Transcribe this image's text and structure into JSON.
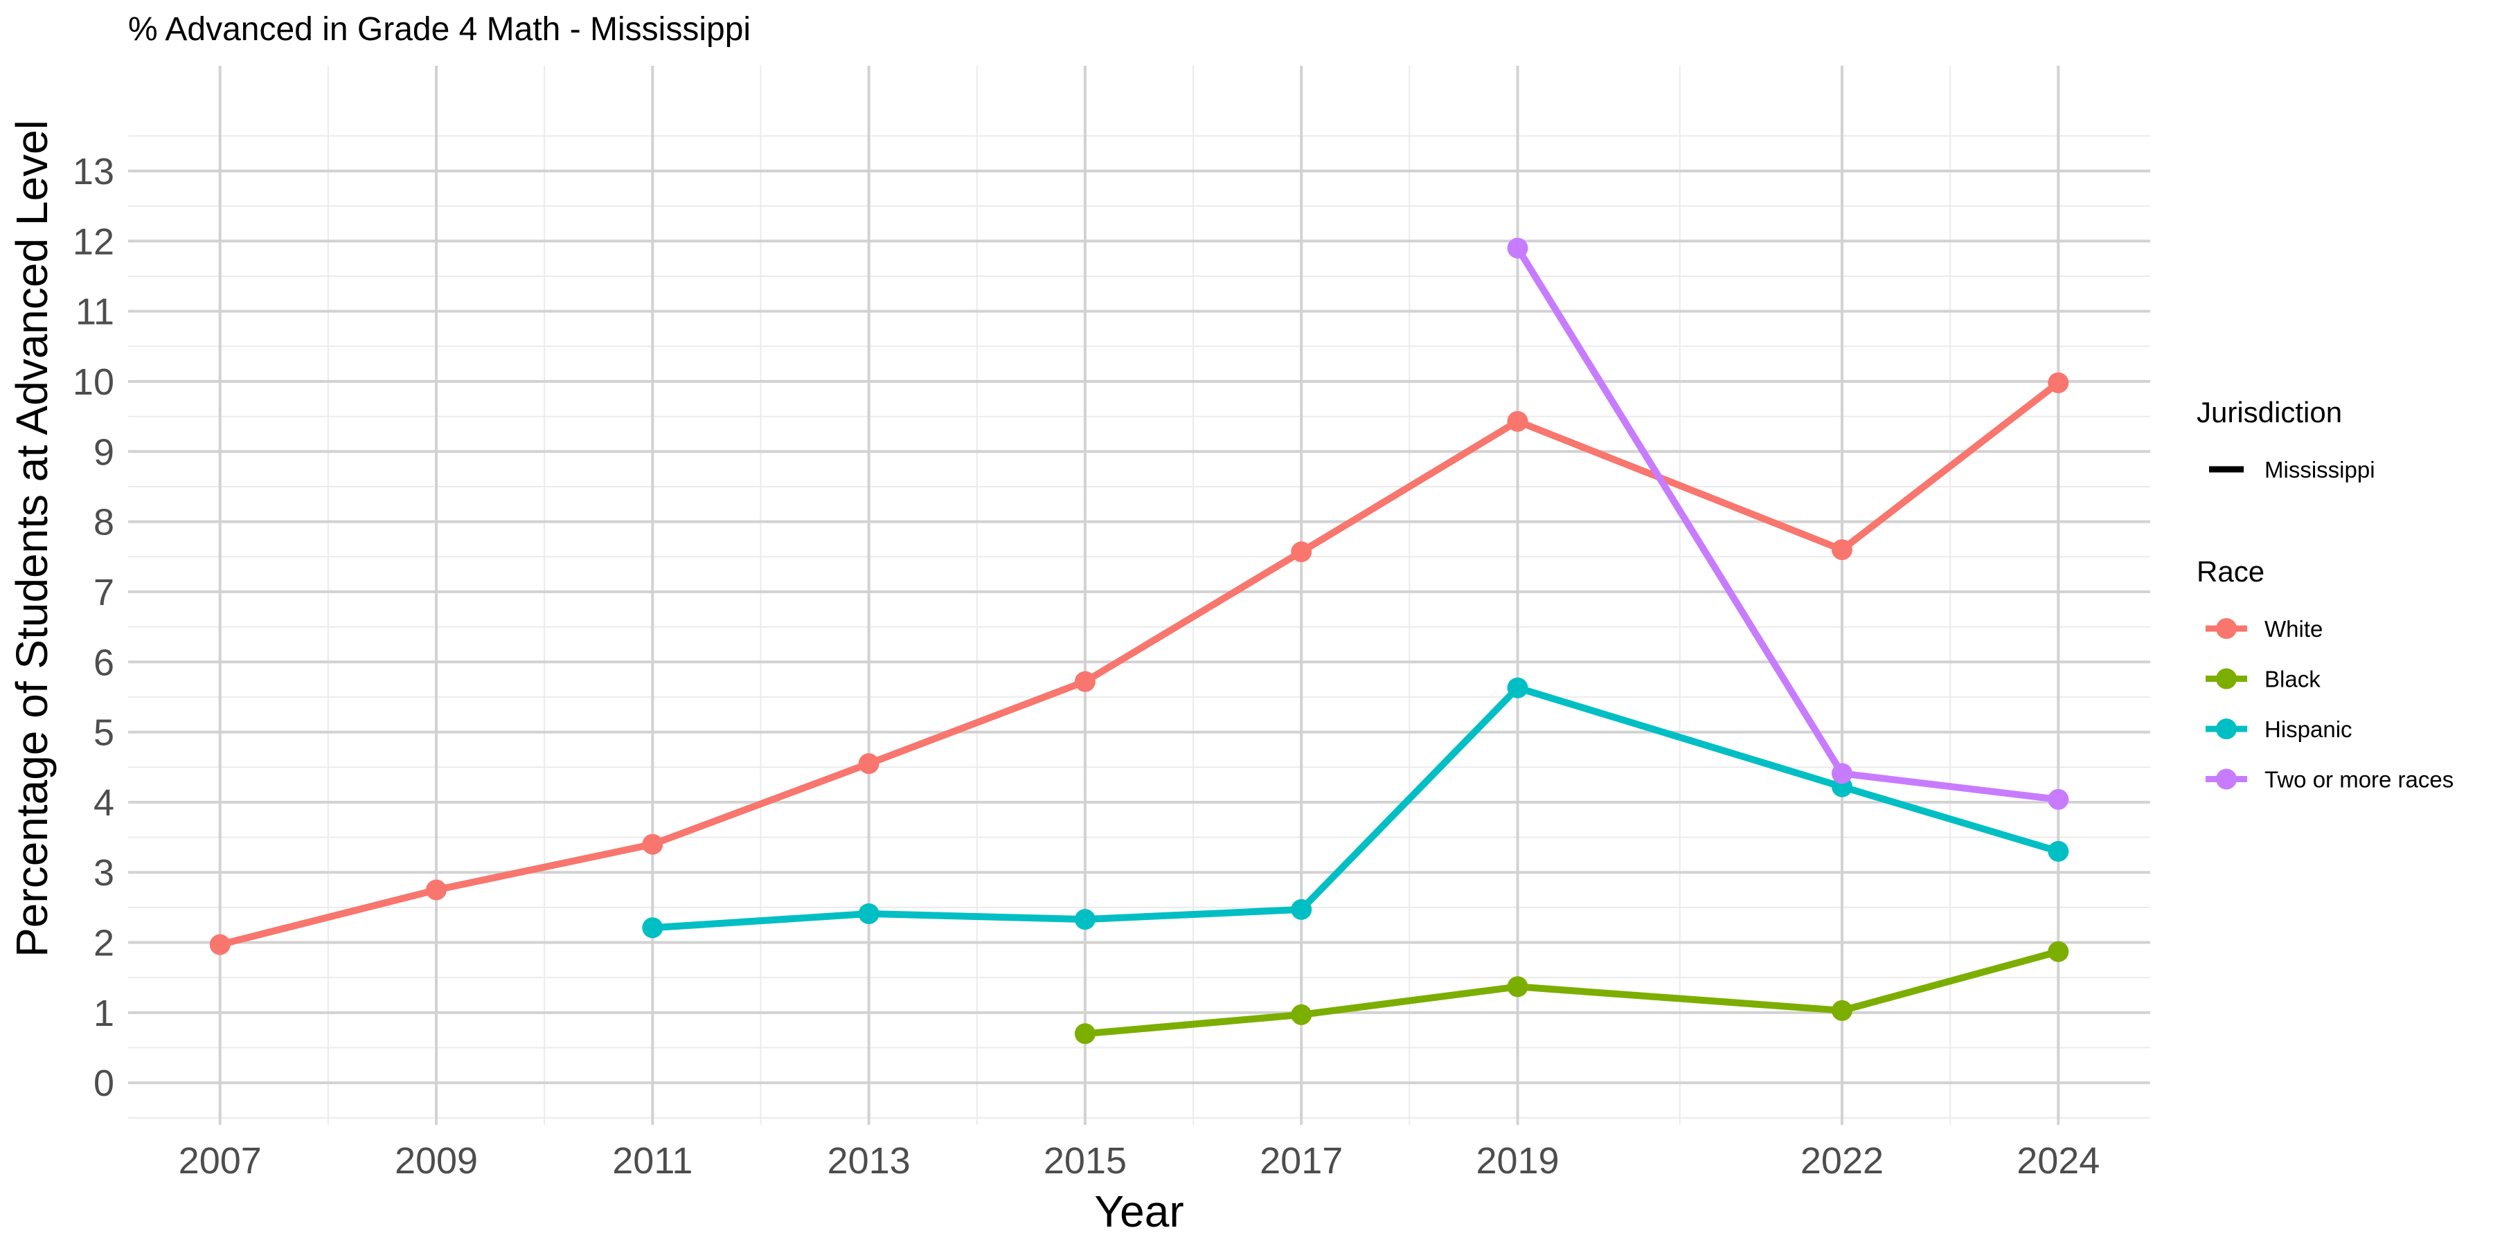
{
  "chart_data": {
    "type": "line",
    "title": "% Advanced in Grade 4 Math - Mississippi",
    "xlabel": "Year",
    "ylabel": "Percentage of Students at Advanced Level",
    "x_ticks": [
      "2007",
      "2009",
      "2011",
      "2013",
      "2015",
      "2017",
      "2019",
      "2022",
      "2024"
    ],
    "y_ticks": [
      "0",
      "1",
      "2",
      "3",
      "4",
      "5",
      "6",
      "7",
      "8",
      "9",
      "10",
      "11",
      "12",
      "13"
    ],
    "xlim": [
      2006.15,
      2024.85
    ],
    "ylim": [
      -0.6,
      14.5
    ],
    "grid": true,
    "legend_position": "right",
    "legend": {
      "jurisdiction_title": "Jurisdiction",
      "jurisdiction_items": [
        "Mississippi"
      ],
      "race_title": "Race"
    },
    "series": [
      {
        "name": "White",
        "color": "#F8766D",
        "x": [
          2007,
          2009,
          2011,
          2013,
          2015,
          2017,
          2019,
          2022,
          2024
        ],
        "y": [
          1.97,
          2.75,
          3.4,
          4.55,
          5.72,
          7.57,
          9.43,
          7.6,
          9.98
        ]
      },
      {
        "name": "Black",
        "color": "#7CAE00",
        "x": [
          2015,
          2017,
          2019,
          2022,
          2024
        ],
        "y": [
          0.7,
          0.97,
          1.37,
          1.03,
          1.87
        ]
      },
      {
        "name": "Hispanic",
        "color": "#00BFC4",
        "x": [
          2011,
          2013,
          2015,
          2017,
          2019,
          2022,
          2024
        ],
        "y": [
          2.21,
          2.41,
          2.33,
          2.47,
          5.63,
          4.22,
          3.3
        ]
      },
      {
        "name": "Two or more races",
        "color": "#C77CFF",
        "x": [
          2019,
          2022,
          2024
        ],
        "y": [
          11.9,
          4.41,
          4.04
        ]
      }
    ]
  }
}
